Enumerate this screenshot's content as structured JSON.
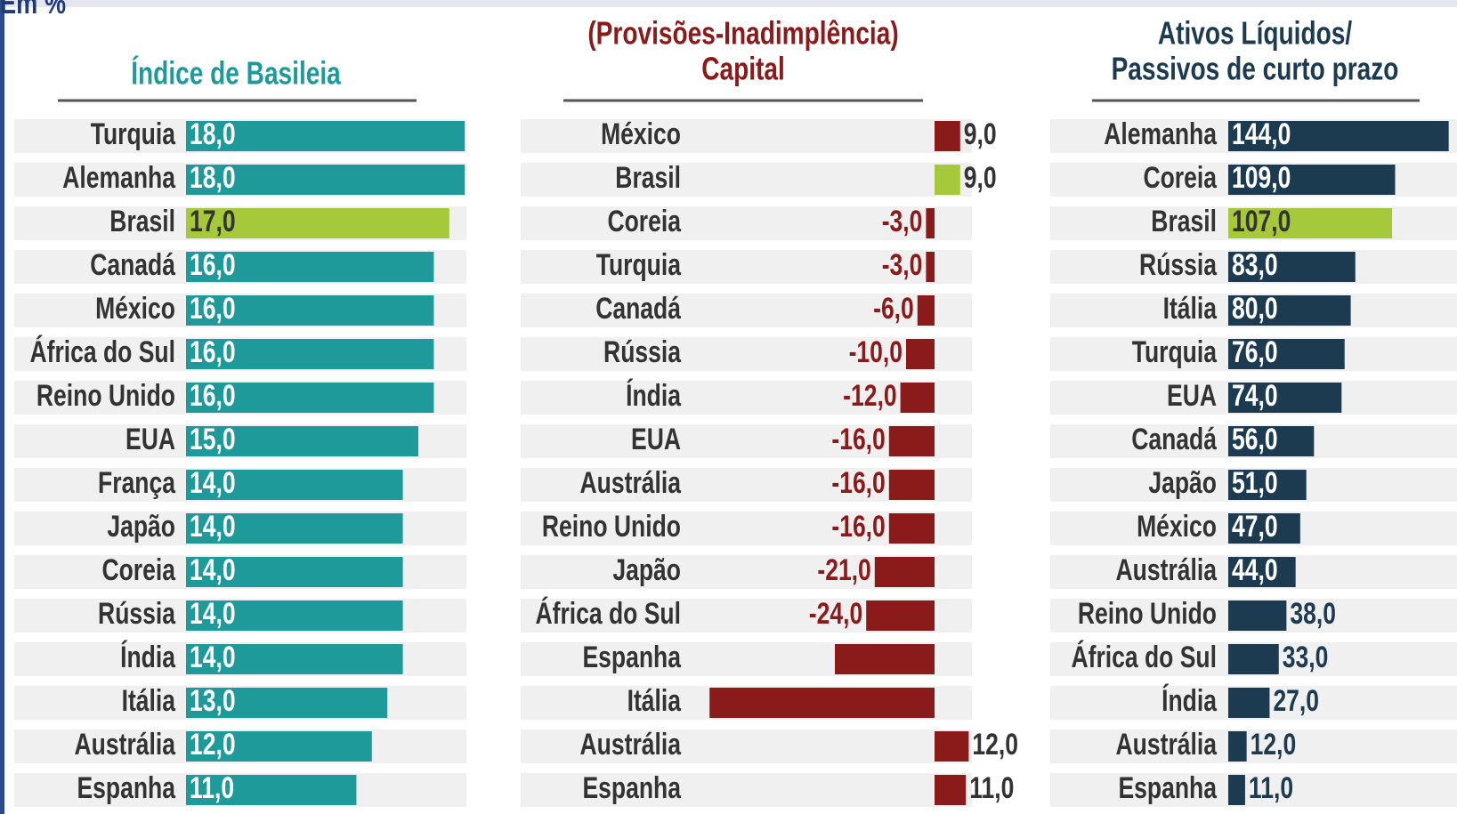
{
  "note": "Em %",
  "chart_data": [
    {
      "type": "bar",
      "orientation": "horizontal",
      "title": [
        "Índice de Basileia"
      ],
      "title_color": "#1e9a9a",
      "categories": [
        "Turquia",
        "Alemanha",
        "Brasil",
        "Canadá",
        "México",
        "África do Sul",
        "Reino Unido",
        "EUA",
        "França",
        "Japão",
        "Coreia",
        "Rússia",
        "Índia",
        "Itália",
        "Austrália",
        "Espanha"
      ],
      "values": [
        18,
        18,
        17,
        16,
        16,
        16,
        16,
        15,
        14,
        14,
        14,
        14,
        14,
        13,
        12,
        11
      ],
      "value_labels": [
        "18,0",
        "18,0",
        "17,0",
        "16,0",
        "16,0",
        "16,0",
        "16,0",
        "15,0",
        "14,0",
        "14,0",
        "14,0",
        "14,0",
        "14,0",
        "13,0",
        "12,0",
        "11,0"
      ],
      "colors": [
        "#1e9a9a",
        "#1e9a9a",
        "#a6c93c",
        "#1e9a9a",
        "#1e9a9a",
        "#1e9a9a",
        "#1e9a9a",
        "#1e9a9a",
        "#1e9a9a",
        "#1e9a9a",
        "#1e9a9a",
        "#1e9a9a",
        "#1e9a9a",
        "#1e9a9a",
        "#1e9a9a",
        "#1e9a9a"
      ]
    },
    {
      "type": "bar",
      "orientation": "horizontal",
      "title": [
        "(Provisões-Inadimplência)",
        "Capital"
      ],
      "title_color": "#8b1a1a",
      "categories": [
        "México",
        "Brasil",
        "Coreia",
        "Turquia",
        "Canadá",
        "Rússia",
        "Índia",
        "EUA",
        "Austrália",
        "Reino Unido",
        "Japão",
        "África do Sul",
        "Espanha",
        "Itália",
        "Austrália",
        "Espanha"
      ],
      "values": [
        9,
        9,
        -3,
        -3,
        -6,
        -10,
        -12,
        -16,
        -16,
        -16,
        -21,
        -24,
        -35,
        -79,
        12,
        11
      ],
      "value_labels": [
        "9,0",
        "9,0",
        "-3,0",
        "-3,0",
        "-6,0",
        "-10,0",
        "-12,0",
        "-16,0",
        "-16,0",
        "-16,0",
        "-21,0",
        "-24,0",
        null,
        null,
        "12,0",
        "11,0"
      ],
      "colors": [
        "#8b1a1a",
        "#a6c93c",
        "#8b1a1a",
        "#8b1a1a",
        "#8b1a1a",
        "#8b1a1a",
        "#8b1a1a",
        "#8b1a1a",
        "#8b1a1a",
        "#8b1a1a",
        "#8b1a1a",
        "#8b1a1a",
        "#8b1a1a",
        "#8b1a1a",
        "#8b1a1a",
        "#8b1a1a"
      ]
    },
    {
      "type": "bar",
      "orientation": "horizontal",
      "title": [
        "Ativos Líquidos/",
        "Passivos de curto prazo"
      ],
      "title_color": "#1c3a50",
      "categories": [
        "Alemanha",
        "Coreia",
        "Brasil",
        "Rússia",
        "Itália",
        "Turquia",
        "EUA",
        "Canadá",
        "Japão",
        "México",
        "Austrália",
        "Reino Unido",
        "África do Sul",
        "Índia",
        "Austrália",
        "Espanha"
      ],
      "values": [
        144,
        109,
        107,
        83,
        80,
        76,
        74,
        56,
        51,
        47,
        44,
        38,
        33,
        27,
        12,
        11
      ],
      "value_labels": [
        "144,0",
        "109,0",
        "107,0",
        "83,0",
        "80,0",
        "76,0",
        "74,0",
        "56,0",
        "51,0",
        "47,0",
        "44,0",
        "38,0",
        "33,0",
        "27,0",
        "12,0",
        "11,0"
      ],
      "colors": [
        "#1c3a50",
        "#1c3a50",
        "#a6c93c",
        "#1c3a50",
        "#1c3a50",
        "#1c3a50",
        "#1c3a50",
        "#1c3a50",
        "#1c3a50",
        "#1c3a50",
        "#1c3a50",
        "#1c3a50",
        "#1c3a50",
        "#1c3a50",
        "#1c3a50",
        "#1c3a50"
      ]
    }
  ]
}
